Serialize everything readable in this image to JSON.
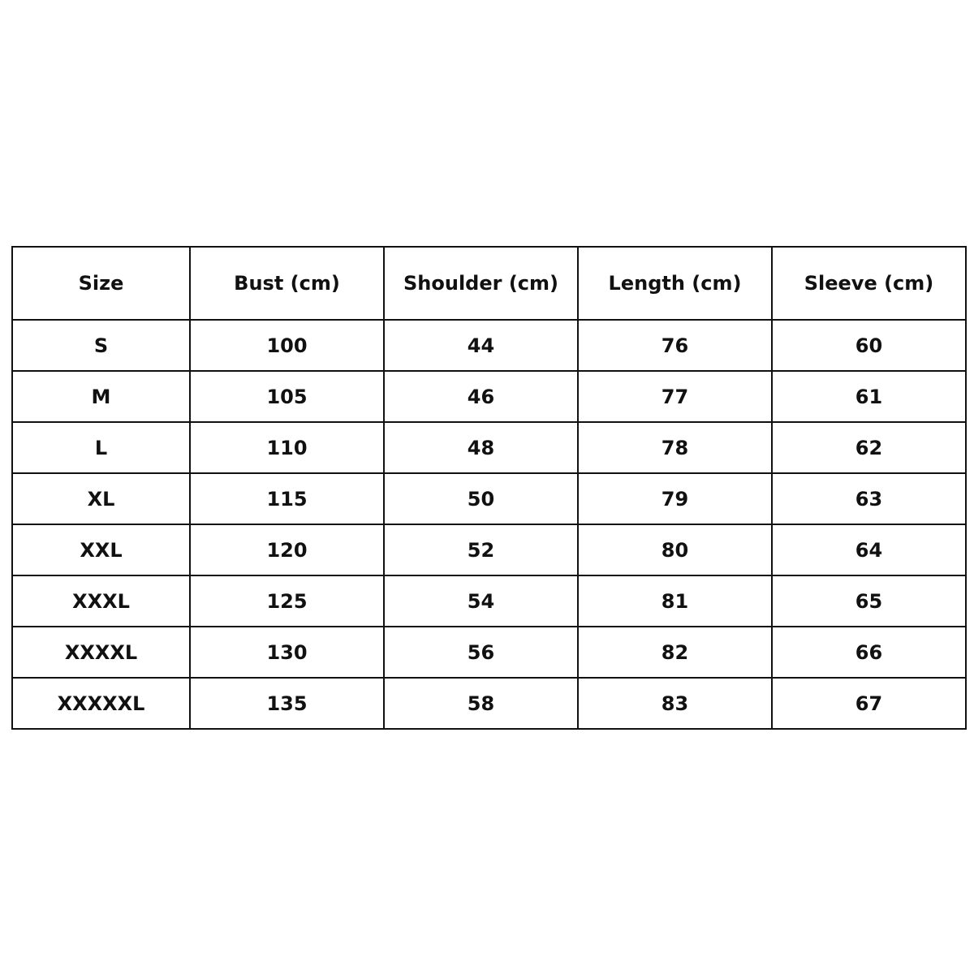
{
  "table": {
    "headers": [
      "Size",
      "Bust (cm)",
      "Shoulder (cm)",
      "Length (cm)",
      "Sleeve (cm)"
    ],
    "rows": [
      [
        "S",
        "100",
        "44",
        "76",
        "60"
      ],
      [
        "M",
        "105",
        "46",
        "77",
        "61"
      ],
      [
        "L",
        "110",
        "48",
        "78",
        "62"
      ],
      [
        "XL",
        "115",
        "50",
        "79",
        "63"
      ],
      [
        "XXL",
        "120",
        "52",
        "80",
        "64"
      ],
      [
        "XXXL",
        "125",
        "54",
        "81",
        "65"
      ],
      [
        "XXXXL",
        "130",
        "56",
        "82",
        "66"
      ],
      [
        "XXXXXL",
        "135",
        "58",
        "83",
        "67"
      ]
    ]
  }
}
